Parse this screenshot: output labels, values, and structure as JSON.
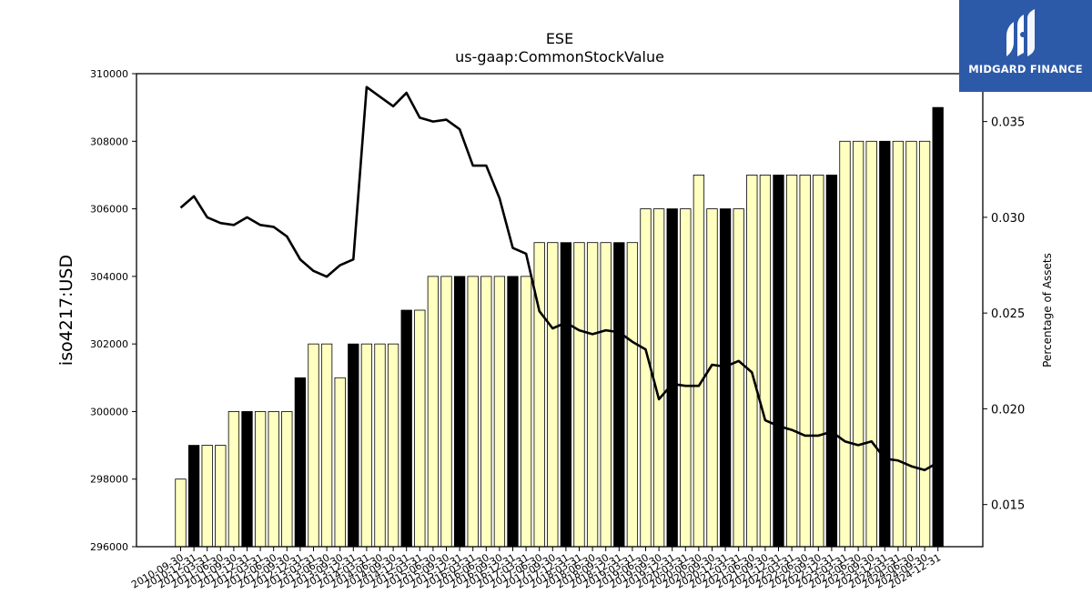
{
  "chart_data": {
    "type": "bar",
    "title": "ESE",
    "subtitle": "us-gaap:CommonStockValue",
    "ylabel": "iso4217:USD",
    "y2label": "Percentage of Assets",
    "ylim": [
      296000,
      310000
    ],
    "y2lim": [
      0.0128,
      0.0375
    ],
    "yticks": [
      296000,
      298000,
      300000,
      302000,
      304000,
      306000,
      308000,
      310000
    ],
    "y2ticks": [
      0.015,
      0.02,
      0.025,
      0.03,
      0.035
    ],
    "y2tick_labels": [
      "0.015",
      "0.020",
      "0.025",
      "0.030",
      "0.035"
    ],
    "bar_colors": {
      "quarter": "#ffffc0",
      "year_end": "#000000"
    },
    "line_color": "#000000",
    "categories": [
      "2010-09-30",
      "2010-12-31",
      "2011-03-31",
      "2011-06-30",
      "2011-09-30",
      "2011-12-31",
      "2012-03-31",
      "2012-06-30",
      "2012-09-30",
      "2012-12-31",
      "2013-03-31",
      "2013-06-30",
      "2013-09-30",
      "2013-12-31",
      "2014-03-31",
      "2014-06-30",
      "2014-09-30",
      "2014-12-31",
      "2015-03-31",
      "2015-06-30",
      "2015-09-30",
      "2015-12-31",
      "2016-03-31",
      "2016-06-30",
      "2016-09-30",
      "2016-12-31",
      "2017-03-31",
      "2017-06-30",
      "2017-09-30",
      "2017-12-31",
      "2018-03-31",
      "2018-06-30",
      "2018-09-30",
      "2018-12-31",
      "2019-03-31",
      "2019-06-30",
      "2019-09-30",
      "2019-12-31",
      "2020-03-31",
      "2020-06-30",
      "2020-09-30",
      "2020-12-31",
      "2021-03-31",
      "2021-06-30",
      "2021-09-30",
      "2021-12-31",
      "2022-03-31",
      "2022-06-30",
      "2022-09-30",
      "2022-12-31",
      "2023-03-31",
      "2023-06-30",
      "2023-09-30",
      "2023-12-31",
      "2024-03-31",
      "2024-06-30",
      "2024-09-30",
      "2024-12-31"
    ],
    "values": [
      298000,
      299000,
      299000,
      299000,
      300000,
      300000,
      300000,
      300000,
      300000,
      301000,
      302000,
      302000,
      301000,
      302000,
      302000,
      302000,
      302000,
      303000,
      303000,
      304000,
      304000,
      304000,
      304000,
      304000,
      304000,
      304000,
      304000,
      305000,
      305000,
      305000,
      305000,
      305000,
      305000,
      305000,
      305000,
      306000,
      306000,
      306000,
      306000,
      307000,
      306000,
      306000,
      306000,
      307000,
      307000,
      307000,
      307000,
      307000,
      307000,
      307000,
      308000,
      308000,
      308000,
      308000,
      308000,
      308000,
      308000,
      309000
    ],
    "year_end": [
      false,
      true,
      false,
      false,
      false,
      true,
      false,
      false,
      false,
      true,
      false,
      false,
      false,
      true,
      false,
      false,
      false,
      true,
      false,
      false,
      false,
      true,
      false,
      false,
      false,
      true,
      false,
      false,
      false,
      true,
      false,
      false,
      false,
      true,
      false,
      false,
      false,
      true,
      false,
      false,
      false,
      true,
      false,
      false,
      false,
      true,
      false,
      false,
      false,
      true,
      false,
      false,
      false,
      true,
      false,
      false,
      false,
      true
    ],
    "series": [
      {
        "values": [
          0.0305,
          0.0311,
          0.03,
          0.0297,
          0.0296,
          0.03,
          0.0296,
          0.0295,
          0.029,
          0.0278,
          0.0272,
          0.0269,
          0.0275,
          0.0278,
          0.0368,
          0.0363,
          0.0358,
          0.0365,
          0.0352,
          0.035,
          0.0351,
          0.0346,
          0.0327,
          0.0327,
          0.031,
          0.0284,
          0.0281,
          0.0251,
          0.0242,
          0.0245,
          0.0241,
          0.0239,
          0.0241,
          0.024,
          0.0235,
          0.0231,
          0.0205,
          0.0213,
          0.0212,
          0.0212,
          0.0223,
          0.0222,
          0.0225,
          0.0219,
          0.0194,
          0.0191,
          0.0189,
          0.0186,
          0.0186,
          0.0188,
          0.0183,
          0.0181,
          0.0183,
          0.0174,
          0.0173,
          0.017,
          0.0168,
          0.0172
        ]
      }
    ]
  },
  "logo": {
    "text": "MIDGARD FINANCE"
  }
}
